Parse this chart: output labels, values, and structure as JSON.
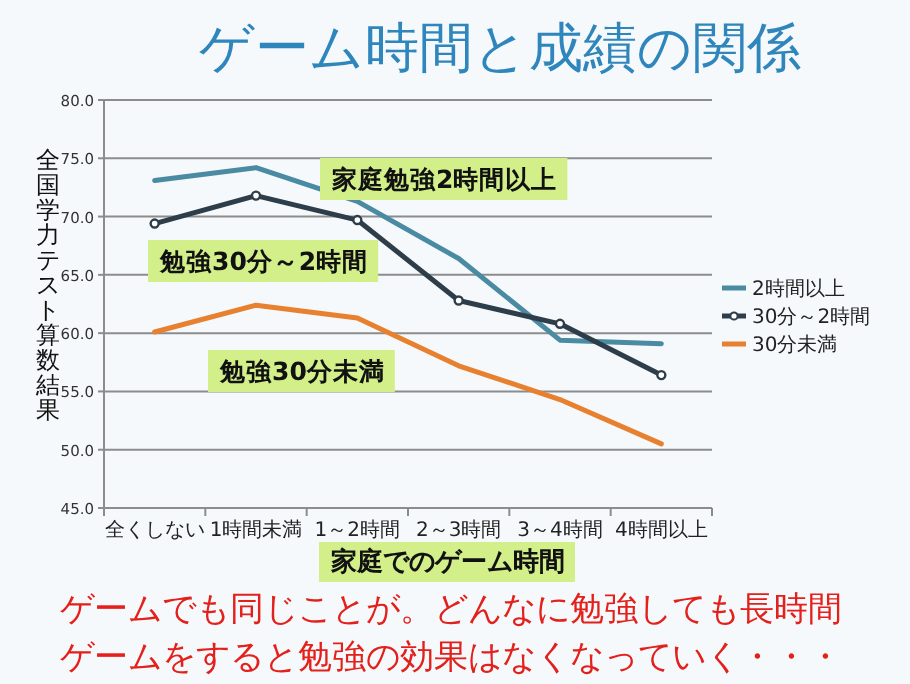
{
  "chart_data": {
    "type": "line",
    "title": "ゲーム時間と成績の関係",
    "xlabel": "家庭でのゲーム時間",
    "ylabel": "全国学力テスト算数結果",
    "categories": [
      "全くしない",
      "1時間未満",
      "1～2時間",
      "2～3時間",
      "3～4時間",
      "4時間以上"
    ],
    "series": [
      {
        "name": "2時間以上",
        "color": "#4a8ba3",
        "marker": "none",
        "values": [
          73.1,
          74.2,
          71.3,
          66.4,
          59.4,
          59.1
        ]
      },
      {
        "name": "30分～2時間",
        "color": "#2e3d4a",
        "marker": "circle",
        "values": [
          69.4,
          71.8,
          69.7,
          62.8,
          60.8,
          56.4
        ]
      },
      {
        "name": "30分未満",
        "color": "#e8812f",
        "marker": "none",
        "values": [
          60.1,
          62.4,
          61.3,
          57.2,
          54.3,
          50.5
        ]
      }
    ],
    "ylim": [
      45,
      80
    ],
    "yticks": [
      {
        "value": 45,
        "label": "45.0"
      },
      {
        "value": 50,
        "label": "50.0"
      },
      {
        "value": 55,
        "label": "55.0"
      },
      {
        "value": 60,
        "label": "60.0"
      },
      {
        "value": 65,
        "label": "65.0"
      },
      {
        "value": 70,
        "label": "70.0"
      },
      {
        "value": 75,
        "label": "75.0"
      },
      {
        "value": 80,
        "label": "80.0"
      }
    ],
    "grid": "y",
    "legend": "right",
    "line_style": "solid",
    "annotations": [
      "家庭勉強2時間以上",
      "勉強30分～2時間",
      "勉強30分未満",
      "ゲームでも同じことが。どんなに勉強しても長時間",
      "ゲームをすると勉強の効果はなくなっていく・・・"
    ]
  }
}
